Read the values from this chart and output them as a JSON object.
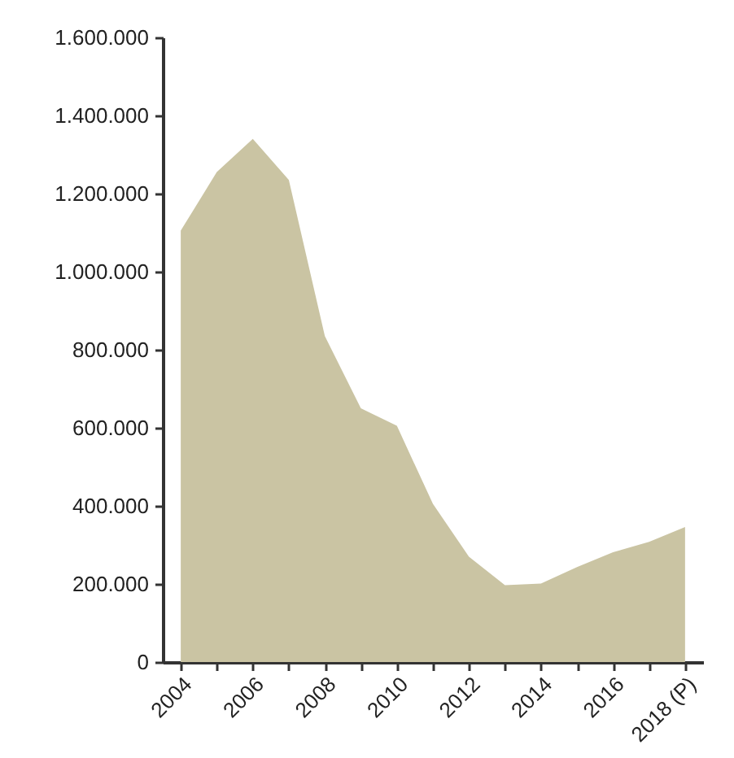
{
  "chart_data": {
    "type": "area",
    "categories": [
      "2004",
      null,
      "2006",
      null,
      "2008",
      null,
      "2010",
      null,
      "2012",
      null,
      "2014",
      null,
      "2016",
      null,
      "2018 (P)"
    ],
    "values": [
      1105000,
      1255000,
      1340000,
      1235000,
      835000,
      650000,
      605000,
      405000,
      270000,
      197000,
      201000,
      243000,
      281000,
      308000,
      346000
    ],
    "color": "#cac4a3",
    "ylim": [
      0,
      1600000
    ],
    "yticks": [
      {
        "value": 0,
        "label": "0"
      },
      {
        "value": 200000,
        "label": "200.000"
      },
      {
        "value": 400000,
        "label": "400.000"
      },
      {
        "value": 600000,
        "label": "600.000"
      },
      {
        "value": 800000,
        "label": "800.000"
      },
      {
        "value": 1000000,
        "label": "1.000.000"
      },
      {
        "value": 1200000,
        "label": "1.200.000"
      },
      {
        "value": 1400000,
        "label": "1.400.000"
      },
      {
        "value": 1600000,
        "label": "1.600.000"
      }
    ],
    "grid": false
  }
}
